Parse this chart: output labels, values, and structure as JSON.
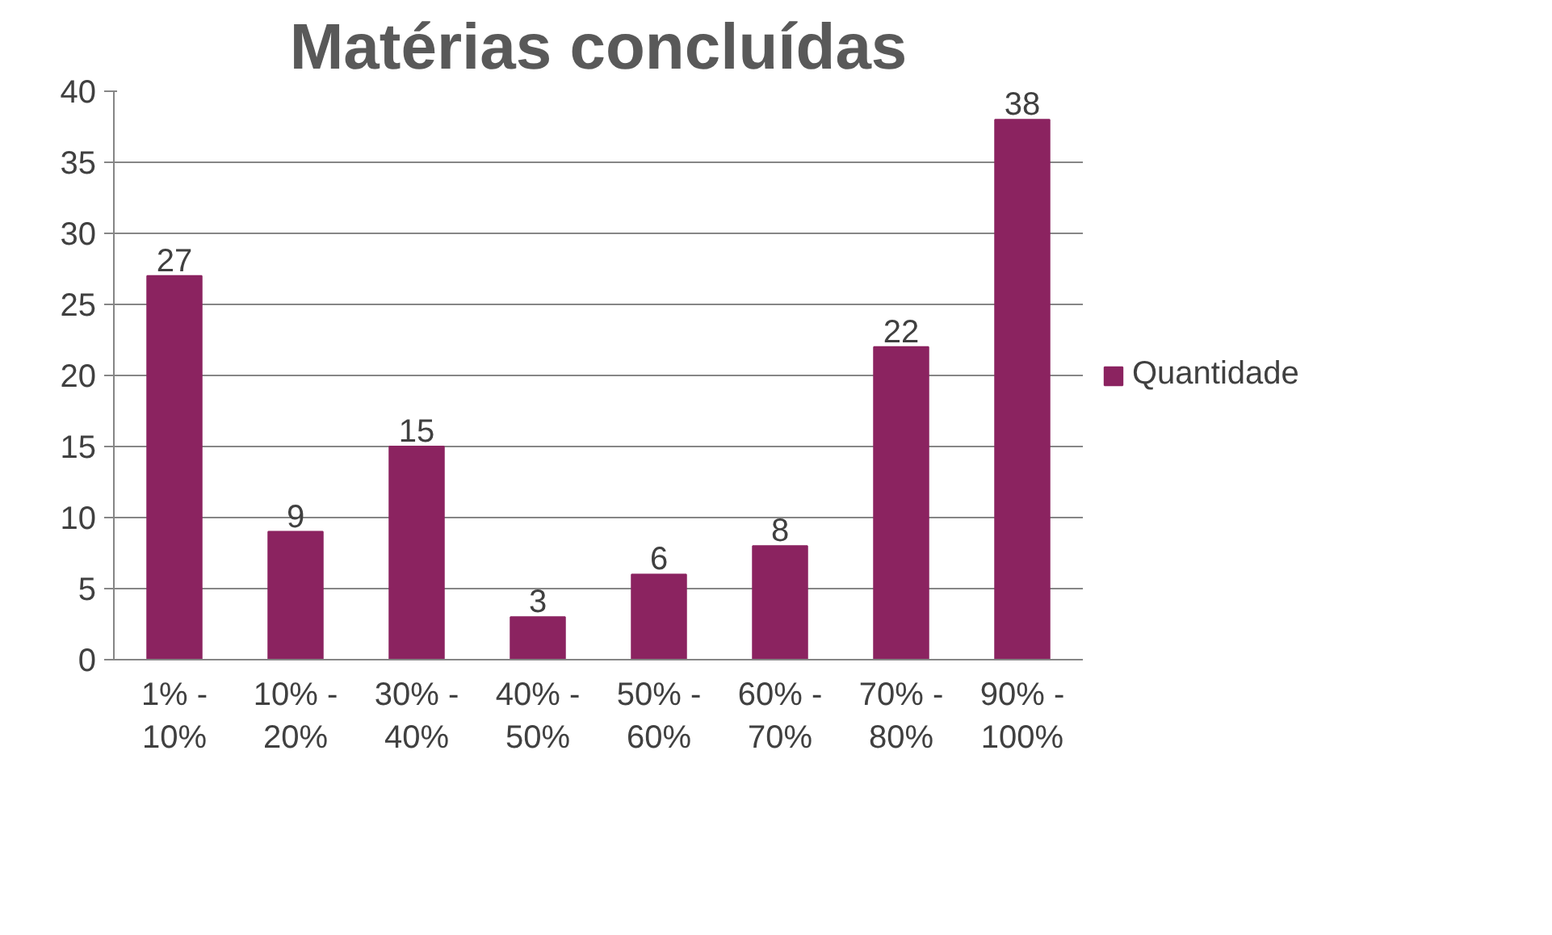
{
  "chart_data": {
    "type": "bar",
    "title": "Matérias concluídas",
    "categories": [
      "1% - 10%",
      "10% - 20%",
      "30% - 40%",
      "40% - 50%",
      "50% - 60%",
      "60% - 70%",
      "70% - 80%",
      "90% - 100%"
    ],
    "series": [
      {
        "name": "Quantidade",
        "color": "#8b2360",
        "values": [
          27,
          9,
          15,
          3,
          6,
          8,
          22,
          38
        ]
      }
    ],
    "ylim": [
      0,
      40
    ],
    "yticks": [
      0,
      5,
      10,
      15,
      20,
      25,
      30,
      35,
      40
    ],
    "grid": "y",
    "legend": "right",
    "data_labels": true
  }
}
